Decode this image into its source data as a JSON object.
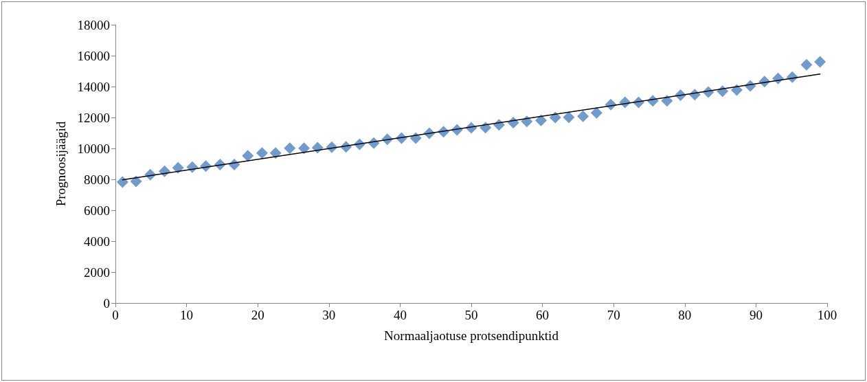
{
  "chart_data": {
    "type": "scatter",
    "xlabel": "Normaaljaotuse protsendipunktid",
    "ylabel": "Prognoosijäägid",
    "xlim": [
      0,
      100
    ],
    "xticks": [
      0,
      10,
      20,
      30,
      40,
      50,
      60,
      70,
      80,
      90,
      100
    ],
    "ylim": [
      0,
      18000
    ],
    "yticks": [
      0,
      2000,
      4000,
      6000,
      8000,
      10000,
      12000,
      14000,
      16000,
      18000
    ],
    "grid": false,
    "marker": "diamond",
    "series": [
      {
        "color": "#4f81bd",
        "x": [
          1.0,
          2.9,
          4.9,
          6.9,
          8.8,
          10.8,
          12.7,
          14.7,
          16.7,
          18.6,
          20.6,
          22.5,
          24.5,
          26.5,
          28.4,
          30.4,
          32.4,
          34.3,
          36.3,
          38.2,
          40.2,
          42.2,
          44.1,
          46.1,
          48.0,
          50.0,
          52.0,
          53.9,
          55.9,
          57.8,
          59.8,
          61.8,
          63.7,
          65.7,
          67.6,
          69.6,
          71.6,
          73.5,
          75.5,
          77.5,
          79.4,
          81.4,
          83.3,
          85.3,
          87.3,
          89.2,
          91.2,
          93.1,
          95.1,
          97.1,
          99.0
        ],
        "values": [
          7820,
          7870,
          8300,
          8520,
          8740,
          8790,
          8860,
          8960,
          8960,
          9520,
          9700,
          9700,
          10010,
          10010,
          10040,
          10080,
          10100,
          10270,
          10340,
          10590,
          10670,
          10670,
          10980,
          11080,
          11200,
          11330,
          11350,
          11520,
          11670,
          11750,
          11810,
          12000,
          12010,
          12080,
          12300,
          12830,
          12980,
          12980,
          13080,
          13080,
          13450,
          13480,
          13640,
          13700,
          13780,
          14040,
          14320,
          14520,
          14610,
          15410,
          15600
        ]
      },
      {
        "type": "line",
        "color": "#000000",
        "marker": "none",
        "line_style": "solid",
        "x": [
          1.0,
          99.0
        ],
        "values": [
          7970,
          14810
        ]
      }
    ]
  }
}
